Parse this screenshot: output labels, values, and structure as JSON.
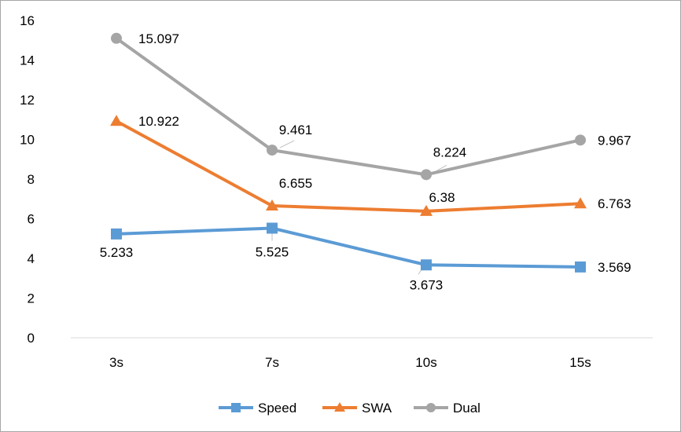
{
  "chart_data": {
    "type": "line",
    "title": "",
    "xlabel": "",
    "ylabel": "",
    "categories": [
      "3s",
      "7s",
      "10s",
      "15s"
    ],
    "yticks": [
      "0",
      "2",
      "4",
      "6",
      "8",
      "10",
      "12",
      "14",
      "16"
    ],
    "ylim": [
      0,
      16
    ],
    "grid": false,
    "legend_position": "bottom",
    "series": [
      {
        "name": "Speed",
        "values": [
          5.233,
          5.525,
          3.673,
          3.569
        ],
        "labels": [
          "5.233",
          "5.525",
          "3.673",
          "3.569"
        ],
        "color": "#5b9bd5",
        "marker": "square"
      },
      {
        "name": "SWA",
        "values": [
          10.922,
          6.655,
          6.38,
          6.763
        ],
        "labels": [
          "10.922",
          "6.655",
          "6.38",
          "6.763"
        ],
        "color": "#ed7d31",
        "marker": "triangle"
      },
      {
        "name": "Dual",
        "values": [
          15.097,
          9.461,
          8.224,
          9.967
        ],
        "labels": [
          "15.097",
          "9.461",
          "8.224",
          "9.967"
        ],
        "color": "#a5a5a5",
        "marker": "circle"
      }
    ]
  }
}
